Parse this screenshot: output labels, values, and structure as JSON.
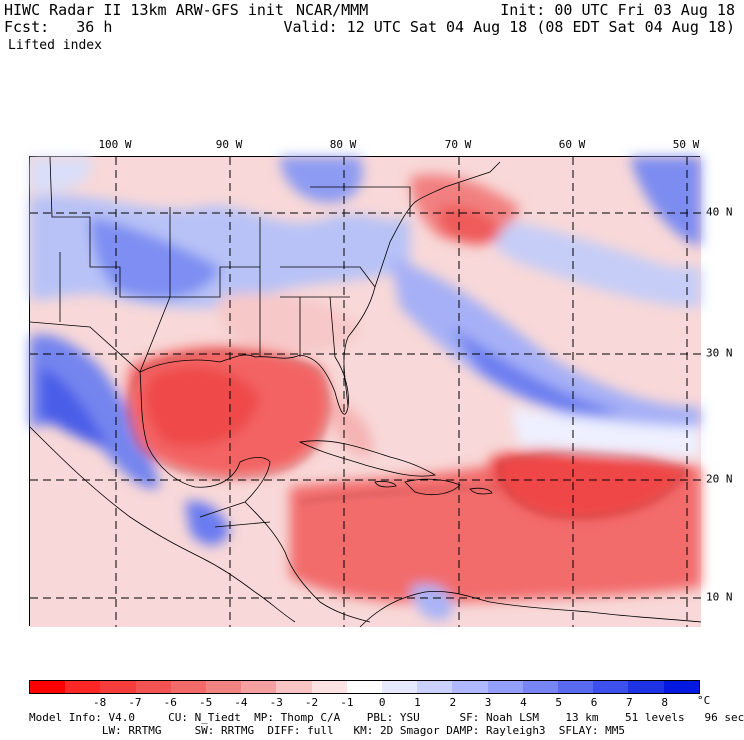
{
  "header": {
    "model_title": "HIWC Radar II 13km ARW-GFS init",
    "org": "NCAR/MMM",
    "init": "Init: 00 UTC Fri 03 Aug 18",
    "fcst": "Fcst:   36 h",
    "valid": "Valid: 12 UTC Sat 04 Aug 18 (08 EDT Sat 04 Aug 18)",
    "field": "Lifted index"
  },
  "map": {
    "lon_labels": [
      "100 W",
      "90 W",
      "80 W",
      "70 W",
      "60 W",
      "50 W"
    ],
    "lat_labels": [
      "40 N",
      "30 N",
      "20 N",
      "10 N"
    ]
  },
  "colorbar": {
    "labels": [
      "-8",
      "-7",
      "-6",
      "-5",
      "-4",
      "-3",
      "-2",
      "-1",
      "0",
      "1",
      "2",
      "3",
      "4",
      "5",
      "6",
      "7",
      "8"
    ],
    "unit": "°C",
    "colors": [
      "#ff0000",
      "#ff2626",
      "#f73c3c",
      "#f45353",
      "#f26a6a",
      "#f28383",
      "#f5a0a0",
      "#f8c4c4",
      "#fbe3e3",
      "#ffffff",
      "#e6e9ff",
      "#ccd2ff",
      "#b0b8ff",
      "#949ffa",
      "#7785f5",
      "#5a6af0",
      "#3d4fec",
      "#1f33e6",
      "#0018e0"
    ]
  },
  "footer": {
    "line1": "Model Info: V4.0     CU: N_Tiedt  MP: Thomp C/A    PBL: YSU      SF: Noah LSM    13 km    51 levels   96 sec",
    "line2": "           LW: RRTMG     SW: RRTMG  DIFF: full   KM: 2D Smagor DAMP: Rayleigh3  SFLAY: MM5"
  }
}
